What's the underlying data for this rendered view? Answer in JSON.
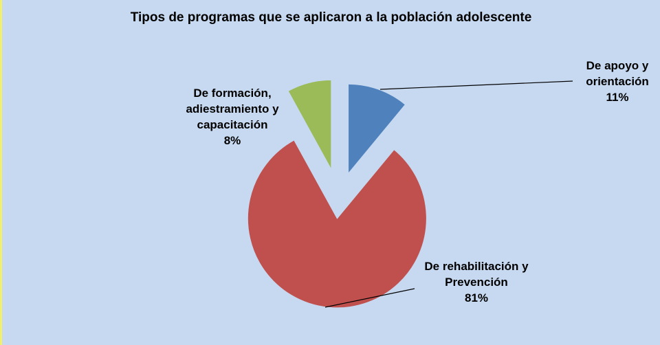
{
  "chart_data": {
    "type": "pie",
    "title": "Tipos de programas que se aplicaron a la población adolescente",
    "categories": [
      "De apoyo y orientación",
      "De rehabilitación y Prevención",
      "De formación, adiestramiento y capacitación"
    ],
    "values": [
      11,
      81,
      8
    ],
    "value_labels": [
      "11%",
      "81%",
      "8%"
    ],
    "colors": [
      "#4f81bd",
      "#c0504d",
      "#9bbb59"
    ]
  }
}
